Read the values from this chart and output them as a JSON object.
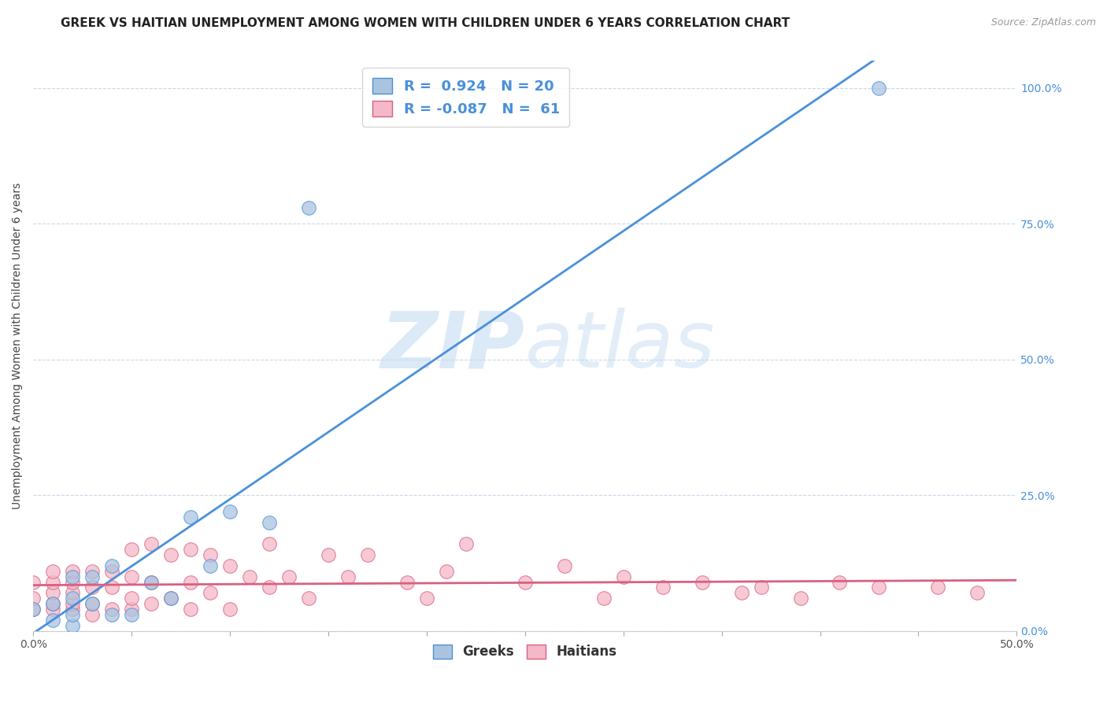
{
  "title": "GREEK VS HAITIAN UNEMPLOYMENT AMONG WOMEN WITH CHILDREN UNDER 6 YEARS CORRELATION CHART",
  "source": "Source: ZipAtlas.com",
  "ylabel": "Unemployment Among Women with Children Under 6 years",
  "xlim": [
    0.0,
    0.5
  ],
  "ylim": [
    0.0,
    1.05
  ],
  "xticks": [
    0.0,
    0.05,
    0.1,
    0.15,
    0.2,
    0.25,
    0.3,
    0.35,
    0.4,
    0.45,
    0.5
  ],
  "ytick_labels": [
    "0.0%",
    "25.0%",
    "50.0%",
    "75.0%",
    "100.0%"
  ],
  "yticks": [
    0.0,
    0.25,
    0.5,
    0.75,
    1.0
  ],
  "greek_R": 0.924,
  "greek_N": 20,
  "haitian_R": -0.087,
  "haitian_N": 61,
  "greek_color": "#aac4e0",
  "haitian_color": "#f4b8c8",
  "greek_line_color": "#4a90d9",
  "haitian_line_color": "#d96080",
  "legend_text_color": "#4a90d9",
  "greek_x": [
    0.0,
    0.01,
    0.01,
    0.02,
    0.02,
    0.02,
    0.02,
    0.03,
    0.03,
    0.04,
    0.04,
    0.05,
    0.06,
    0.07,
    0.08,
    0.09,
    0.1,
    0.12,
    0.14,
    0.43
  ],
  "greek_y": [
    0.04,
    0.02,
    0.05,
    0.01,
    0.03,
    0.06,
    0.1,
    0.05,
    0.1,
    0.03,
    0.12,
    0.03,
    0.09,
    0.06,
    0.21,
    0.12,
    0.22,
    0.2,
    0.78,
    1.0
  ],
  "haitian_x": [
    0.0,
    0.0,
    0.0,
    0.01,
    0.01,
    0.01,
    0.01,
    0.01,
    0.02,
    0.02,
    0.02,
    0.02,
    0.02,
    0.03,
    0.03,
    0.03,
    0.03,
    0.04,
    0.04,
    0.04,
    0.05,
    0.05,
    0.05,
    0.05,
    0.06,
    0.06,
    0.06,
    0.07,
    0.07,
    0.08,
    0.08,
    0.08,
    0.09,
    0.09,
    0.1,
    0.1,
    0.11,
    0.12,
    0.12,
    0.13,
    0.14,
    0.15,
    0.16,
    0.17,
    0.19,
    0.2,
    0.21,
    0.22,
    0.25,
    0.27,
    0.29,
    0.3,
    0.32,
    0.34,
    0.36,
    0.37,
    0.39,
    0.41,
    0.43,
    0.46,
    0.48
  ],
  "haitian_y": [
    0.04,
    0.06,
    0.09,
    0.04,
    0.05,
    0.07,
    0.09,
    0.11,
    0.04,
    0.05,
    0.07,
    0.09,
    0.11,
    0.03,
    0.05,
    0.08,
    0.11,
    0.04,
    0.08,
    0.11,
    0.04,
    0.06,
    0.1,
    0.15,
    0.05,
    0.09,
    0.16,
    0.06,
    0.14,
    0.04,
    0.09,
    0.15,
    0.07,
    0.14,
    0.04,
    0.12,
    0.1,
    0.08,
    0.16,
    0.1,
    0.06,
    0.14,
    0.1,
    0.14,
    0.09,
    0.06,
    0.11,
    0.16,
    0.09,
    0.12,
    0.06,
    0.1,
    0.08,
    0.09,
    0.07,
    0.08,
    0.06,
    0.09,
    0.08,
    0.08,
    0.07
  ],
  "watermark_zip": "ZIP",
  "watermark_atlas": "atlas",
  "title_fontsize": 11,
  "label_fontsize": 10,
  "tick_fontsize": 10,
  "source_fontsize": 9
}
